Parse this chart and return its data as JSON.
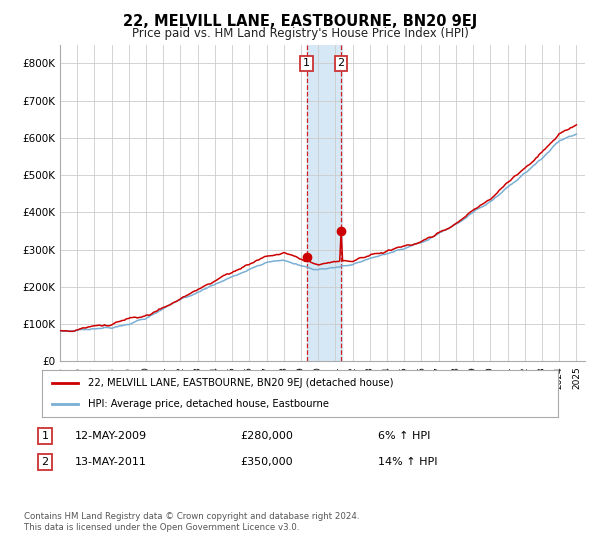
{
  "title": "22, MELVILL LANE, EASTBOURNE, BN20 9EJ",
  "subtitle": "Price paid vs. HM Land Registry's House Price Index (HPI)",
  "legend_label_red": "22, MELVILL LANE, EASTBOURNE, BN20 9EJ (detached house)",
  "legend_label_blue": "HPI: Average price, detached house, Eastbourne",
  "transaction1_date": "12-MAY-2009",
  "transaction1_price": "£280,000",
  "transaction1_hpi": "6% ↑ HPI",
  "transaction2_date": "13-MAY-2011",
  "transaction2_price": "£350,000",
  "transaction2_hpi": "14% ↑ HPI",
  "footnote": "Contains HM Land Registry data © Crown copyright and database right 2024.\nThis data is licensed under the Open Government Licence v3.0.",
  "ylim_min": 0,
  "ylim_max": 850000,
  "color_red": "#cc0000",
  "color_blue": "#7aafd4",
  "color_shading": "#d6e8f5",
  "background_color": "#ffffff",
  "grid_color": "#cccccc",
  "t1_year": 2009.37,
  "t2_year": 2011.37,
  "t1_price": 280000,
  "t2_price": 350000,
  "xmin": 1995,
  "xmax": 2025.5
}
